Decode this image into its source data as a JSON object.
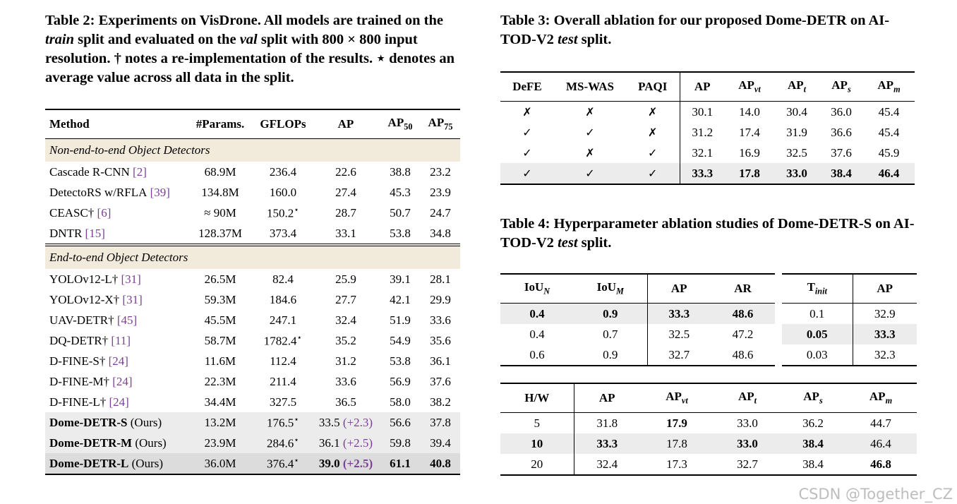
{
  "table2": {
    "caption": [
      {
        "text": "Table 2: Experiments on VisDrone. All models are trained on the "
      },
      {
        "text": "train",
        "italic": true
      },
      {
        "text": " split and evaluated on the "
      },
      {
        "text": "val",
        "italic": true
      },
      {
        "text": " split with 800 × 800 input resolution. † notes a re-implementation of the results. ⋆ denotes an average value across all data in the split."
      }
    ],
    "header": [
      "Method",
      "#Params.",
      "GFLOPs",
      "AP",
      [
        {
          "text": "AP"
        },
        {
          "text": "50",
          "sub": true
        }
      ],
      [
        {
          "text": "AP"
        },
        {
          "text": "75",
          "sub": true
        }
      ]
    ],
    "groups": [
      {
        "title": "Non-end-to-end Object Detectors",
        "rows": [
          {
            "cells": [
              [
                {
                  "text": "Cascade R-CNN"
                },
                {
                  "text": "[2]",
                  "color": "#7b3f98"
                }
              ],
              "68.9M",
              "236.4",
              "22.6",
              "38.8",
              "23.2"
            ]
          },
          {
            "cells": [
              [
                {
                  "text": "DetectoRS w/RFLA"
                },
                {
                  "text": "[39]",
                  "color": "#7b3f98"
                }
              ],
              "134.8M",
              "160.0",
              "27.4",
              "45.3",
              "23.9"
            ]
          },
          {
            "cells": [
              [
                {
                  "text": "CEASC†"
                },
                {
                  "text": "[6]",
                  "color": "#7b3f98"
                }
              ],
              "≈ 90M",
              [
                {
                  "text": "150.2"
                },
                {
                  "text": "⋆",
                  "sup": true
                }
              ],
              "28.7",
              "50.7",
              "24.7"
            ]
          },
          {
            "cells": [
              [
                {
                  "text": "DNTR"
                },
                {
                  "text": "[15]",
                  "color": "#7b3f98"
                }
              ],
              "128.37M",
              "373.4",
              "33.1",
              "53.8",
              "34.8"
            ]
          }
        ]
      },
      {
        "title": "End-to-end Object Detectors",
        "rows": [
          {
            "cells": [
              [
                {
                  "text": "YOLOv12-L†"
                },
                {
                  "text": "[31]",
                  "color": "#7b3f98"
                }
              ],
              "26.5M",
              "82.4",
              "25.9",
              "39.1",
              "28.1"
            ]
          },
          {
            "cells": [
              [
                {
                  "text": "YOLOv12-X†"
                },
                {
                  "text": "[31]",
                  "color": "#7b3f98"
                }
              ],
              "59.3M",
              "184.6",
              "27.7",
              "42.1",
              "29.9"
            ]
          },
          {
            "cells": [
              [
                {
                  "text": "UAV-DETR†"
                },
                {
                  "text": "[45]",
                  "color": "#7b3f98"
                }
              ],
              "45.5M",
              "247.1",
              "32.4",
              "51.9",
              "33.6"
            ]
          },
          {
            "cells": [
              [
                {
                  "text": "DQ-DETR†"
                },
                {
                  "text": "[11]",
                  "color": "#7b3f98"
                }
              ],
              "58.7M",
              [
                {
                  "text": "1782.4"
                },
                {
                  "text": "⋆",
                  "sup": true
                }
              ],
              "35.2",
              "54.9",
              "35.6"
            ]
          },
          {
            "cells": [
              [
                {
                  "text": "D-FINE-S†"
                },
                {
                  "text": "[24]",
                  "color": "#7b3f98"
                }
              ],
              "11.6M",
              "112.4",
              "31.2",
              "53.8",
              "36.1"
            ]
          },
          {
            "cells": [
              [
                {
                  "text": "D-FINE-M†"
                },
                {
                  "text": "[24]",
                  "color": "#7b3f98"
                }
              ],
              "22.3M",
              "211.4",
              "33.6",
              "56.9",
              "37.6"
            ]
          },
          {
            "cells": [
              [
                {
                  "text": "D-FINE-L†"
                },
                {
                  "text": "[24]",
                  "color": "#7b3f98"
                }
              ],
              "34.4M",
              "327.5",
              "36.5",
              "58.0",
              "38.2"
            ]
          },
          {
            "shade": "light",
            "cells": [
              [
                {
                  "text": "Dome-DETR-S",
                  "bold": true
                },
                {
                  "text": "(Ours)"
                }
              ],
              "13.2M",
              [
                {
                  "text": "176.5"
                },
                {
                  "text": "⋆",
                  "sup": true
                }
              ],
              [
                {
                  "text": "33.5"
                },
                {
                  "text": "(+2.3)",
                  "color": "#7b3f98"
                }
              ],
              "56.6",
              "37.8"
            ]
          },
          {
            "shade": "light",
            "cells": [
              [
                {
                  "text": "Dome-DETR-M",
                  "bold": true
                },
                {
                  "text": "(Ours)"
                }
              ],
              "23.9M",
              [
                {
                  "text": "284.6"
                },
                {
                  "text": "⋆",
                  "sup": true
                }
              ],
              [
                {
                  "text": "36.1"
                },
                {
                  "text": "(+2.5)",
                  "color": "#7b3f98"
                }
              ],
              "59.8",
              "39.4"
            ]
          },
          {
            "shade": "dark",
            "cells": [
              [
                {
                  "text": "Dome-DETR-L",
                  "bold": true
                },
                {
                  "text": "(Ours)"
                }
              ],
              "36.0M",
              [
                {
                  "text": "376.4"
                },
                {
                  "text": "⋆",
                  "sup": true
                }
              ],
              [
                {
                  "text": "39.0",
                  "bold": true
                },
                {
                  "text": "(+2.5)",
                  "color": "#7b3f98",
                  "bold": true
                }
              ],
              [
                {
                  "text": "61.1",
                  "bold": true
                }
              ],
              [
                {
                  "text": "40.8",
                  "bold": true
                }
              ]
            ]
          }
        ]
      }
    ]
  },
  "table3": {
    "caption": [
      {
        "text": "Table 3: Overall ablation for our proposed Dome-DETR on AI-TOD-V2 "
      },
      {
        "text": "test",
        "italic": true
      },
      {
        "text": " split."
      }
    ],
    "header": [
      "DeFE",
      "MS-WAS",
      "PAQI",
      "AP",
      [
        {
          "text": "AP"
        },
        {
          "text": "vt",
          "sub": true,
          "italic": true
        }
      ],
      [
        {
          "text": "AP"
        },
        {
          "text": "t",
          "sub": true,
          "italic": true
        }
      ],
      [
        {
          "text": "AP"
        },
        {
          "text": "s",
          "sub": true,
          "italic": true
        }
      ],
      [
        {
          "text": "AP"
        },
        {
          "text": "m",
          "sub": true,
          "italic": true
        }
      ]
    ],
    "rows": [
      {
        "cells": [
          "✗",
          "✗",
          "✗",
          "30.1",
          "14.0",
          "30.4",
          "36.0",
          "45.4"
        ]
      },
      {
        "cells": [
          "✓",
          "✓",
          "✗",
          "31.2",
          "17.4",
          "31.9",
          "36.6",
          "45.4"
        ]
      },
      {
        "cells": [
          "✓",
          "✗",
          "✓",
          "32.1",
          "16.9",
          "32.5",
          "37.6",
          "45.9"
        ]
      },
      {
        "shade": "light",
        "cells": [
          "✓",
          "✓",
          "✓",
          [
            {
              "text": "33.3",
              "bold": true
            }
          ],
          [
            {
              "text": "17.8",
              "bold": true
            }
          ],
          [
            {
              "text": "33.0",
              "bold": true
            }
          ],
          [
            {
              "text": "38.4",
              "bold": true
            }
          ],
          [
            {
              "text": "46.4",
              "bold": true
            }
          ]
        ]
      }
    ]
  },
  "table4": {
    "caption": [
      {
        "text": "Table 4: Hyperparameter ablation studies of Dome-DETR-S on AI-TOD-V2 "
      },
      {
        "text": "test",
        "italic": true
      },
      {
        "text": " split."
      }
    ],
    "iou": {
      "header": [
        [
          {
            "text": "IoU"
          },
          {
            "text": "N",
            "sub": true,
            "italic": true
          }
        ],
        [
          {
            "text": "IoU"
          },
          {
            "text": "M",
            "sub": true,
            "italic": true
          }
        ],
        "AP",
        "AR"
      ],
      "rows": [
        {
          "shade": "light",
          "cells": [
            [
              {
                "text": "0.4",
                "bold": true
              }
            ],
            [
              {
                "text": "0.9",
                "bold": true
              }
            ],
            [
              {
                "text": "33.3",
                "bold": true
              }
            ],
            [
              {
                "text": "48.6",
                "bold": true
              }
            ]
          ]
        },
        {
          "cells": [
            "0.4",
            "0.7",
            "32.5",
            "47.2"
          ]
        },
        {
          "cells": [
            "0.6",
            "0.9",
            "32.7",
            "48.6"
          ]
        }
      ]
    },
    "tinit": {
      "header": [
        [
          {
            "text": "T"
          },
          {
            "text": "init",
            "sub": true,
            "italic": true
          }
        ],
        "AP"
      ],
      "rows": [
        {
          "cells": [
            "0.1",
            "32.9"
          ]
        },
        {
          "shade": "light",
          "cells": [
            [
              {
                "text": "0.05",
                "bold": true
              }
            ],
            [
              {
                "text": "33.3",
                "bold": true
              }
            ]
          ]
        },
        {
          "cells": [
            "0.03",
            "32.3"
          ]
        }
      ]
    },
    "hw": {
      "header": [
        "H/W",
        "AP",
        [
          {
            "text": "AP"
          },
          {
            "text": "vt",
            "sub": true,
            "italic": true
          }
        ],
        [
          {
            "text": "AP"
          },
          {
            "text": "t",
            "sub": true,
            "italic": true
          }
        ],
        [
          {
            "text": "AP"
          },
          {
            "text": "s",
            "sub": true,
            "italic": true
          }
        ],
        [
          {
            "text": "AP"
          },
          {
            "text": "m",
            "sub": true,
            "italic": true
          }
        ]
      ],
      "rows": [
        {
          "cells": [
            "5",
            "31.8",
            [
              {
                "text": "17.9",
                "bold": true
              }
            ],
            "33.0",
            "36.2",
            "44.7"
          ]
        },
        {
          "shade": "light",
          "cells": [
            [
              {
                "text": "10",
                "bold": true
              }
            ],
            [
              {
                "text": "33.3",
                "bold": true
              }
            ],
            "17.8",
            [
              {
                "text": "33.0",
                "bold": true
              }
            ],
            [
              {
                "text": "38.4",
                "bold": true
              }
            ],
            "46.4"
          ]
        },
        {
          "cells": [
            "20",
            "32.4",
            "17.3",
            "32.7",
            "38.4",
            [
              {
                "text": "46.8",
                "bold": true
              }
            ]
          ]
        }
      ]
    }
  },
  "watermark": "CSDN @Together_CZ"
}
